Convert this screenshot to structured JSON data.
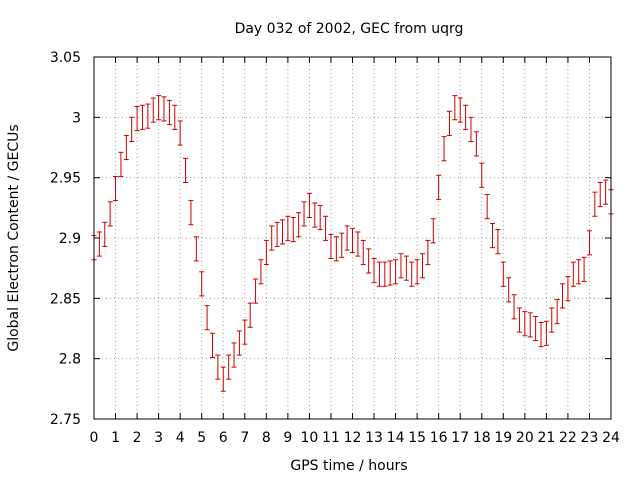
{
  "chart_data": {
    "type": "scatter",
    "title": "Day 032 of 2002, GEC from uqrg",
    "xlabel": "GPS time / hours",
    "ylabel": "Global Electron Content / GECUs",
    "xlim": [
      0,
      24
    ],
    "ylim": [
      2.75,
      3.05
    ],
    "xticks": [
      "0",
      "1",
      "2",
      "3",
      "4",
      "5",
      "6",
      "7",
      "8",
      "9",
      "10",
      "11",
      "12",
      "13",
      "14",
      "15",
      "16",
      "17",
      "18",
      "19",
      "20",
      "21",
      "22",
      "23",
      "24"
    ],
    "yticks": [
      "2.75",
      "2.8",
      "2.85",
      "2.9",
      "2.95",
      "3",
      "3.05"
    ],
    "grid": true,
    "color": "#cc0000",
    "error": 0.01,
    "series": [
      {
        "x": [
          0.0,
          0.25,
          0.5,
          0.75,
          1.0,
          1.25,
          1.5,
          1.75,
          2.0,
          2.25,
          2.5,
          2.75,
          3.0,
          3.25,
          3.5,
          3.75,
          4.0,
          4.25,
          4.5,
          4.75,
          5.0,
          5.25,
          5.5,
          5.75,
          6.0,
          6.25,
          6.5,
          6.75,
          7.0,
          7.25,
          7.5,
          7.75,
          8.0,
          8.25,
          8.5,
          8.75,
          9.0,
          9.25,
          9.5,
          9.75,
          10.0,
          10.25,
          10.5,
          10.75,
          11.0,
          11.25,
          11.5,
          11.75,
          12.0,
          12.25,
          12.5,
          12.75,
          13.0,
          13.25,
          13.5,
          13.75,
          14.0,
          14.25,
          14.5,
          14.75,
          15.0,
          15.25,
          15.5,
          15.75,
          16.0,
          16.25,
          16.5,
          16.75,
          17.0,
          17.25,
          17.5,
          17.75,
          18.0,
          18.25,
          18.5,
          18.75,
          19.0,
          19.25,
          19.5,
          19.75,
          20.0,
          20.25,
          20.5,
          20.75,
          21.0,
          21.25,
          21.5,
          21.75,
          22.0,
          22.25,
          22.5,
          22.75,
          23.0,
          23.25,
          23.5,
          23.75,
          24.0
        ],
        "y": [
          2.892,
          2.895,
          2.903,
          2.92,
          2.941,
          2.961,
          2.975,
          2.99,
          2.999,
          3.0,
          3.001,
          3.006,
          3.008,
          3.007,
          3.004,
          3.0,
          2.987,
          2.956,
          2.921,
          2.891,
          2.862,
          2.834,
          2.811,
          2.793,
          2.783,
          2.793,
          2.803,
          2.813,
          2.822,
          2.836,
          2.856,
          2.872,
          2.888,
          2.9,
          2.903,
          2.905,
          2.908,
          2.907,
          2.911,
          2.92,
          2.927,
          2.919,
          2.917,
          2.908,
          2.893,
          2.891,
          2.894,
          2.9,
          2.898,
          2.895,
          2.888,
          2.881,
          2.873,
          2.87,
          2.87,
          2.871,
          2.872,
          2.877,
          2.875,
          2.87,
          2.872,
          2.877,
          2.888,
          2.906,
          2.942,
          2.974,
          2.995,
          3.008,
          3.006,
          3.0,
          2.99,
          2.978,
          2.952,
          2.926,
          2.902,
          2.897,
          2.87,
          2.857,
          2.843,
          2.832,
          2.829,
          2.828,
          2.825,
          2.82,
          2.821,
          2.832,
          2.839,
          2.852,
          2.858,
          2.87,
          2.872,
          2.874,
          2.896,
          2.928,
          2.936,
          2.938,
          2.93
        ]
      }
    ]
  }
}
